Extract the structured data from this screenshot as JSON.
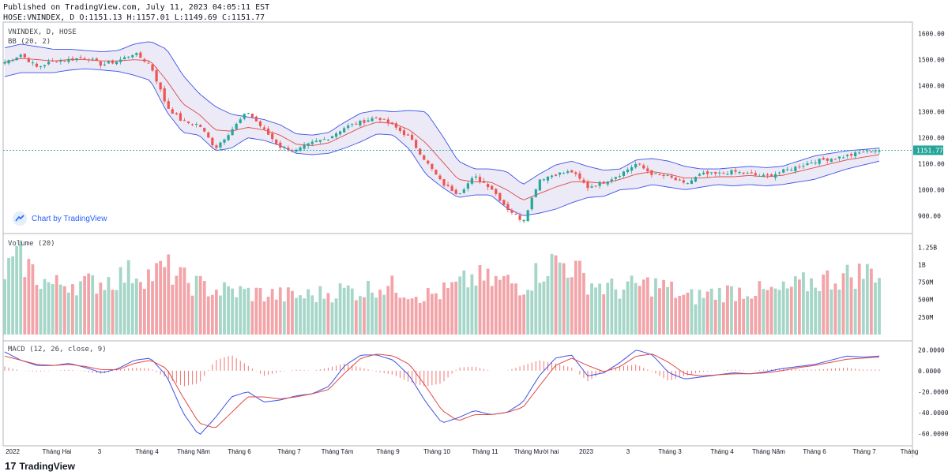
{
  "header": {
    "published_line": "Published on TradingView.com, July 11, 2023 04:05:11 EST",
    "symbol_line": "HOSE:VNINDEX, D O:1151.13 H:1157.01 L:1149.69 C:1151.77"
  },
  "footer": {
    "brand": "TradingView"
  },
  "badge": {
    "label": "Chart by TradingView"
  },
  "colors": {
    "up": "#26a69a",
    "down": "#ef5350",
    "up_vol": "#a5d6c8",
    "down_vol": "#f2a4a8",
    "bb_band": "#3f51e8",
    "bb_basis": "#e04848",
    "bb_fill": "#e8e6f5",
    "macd": "#3f51e8",
    "signal": "#e04848",
    "last_price": "#26a69a"
  },
  "chart_data": [
    {
      "type": "candlestick",
      "title": "VNINDEX, D, HOSE",
      "indicator": "BB (20, 2)",
      "ylim": [
        850,
        1620
      ],
      "y_ticks": [
        "1600.00",
        "1500.00",
        "1400.00",
        "1300.00",
        "1200.00",
        "1100.00",
        "1000.00",
        "900.00"
      ],
      "last_price": "1151.77",
      "close_path": [
        1490,
        1520,
        1470,
        1495,
        1500,
        1510,
        1480,
        1495,
        1525,
        1480,
        1320,
        1260,
        1250,
        1160,
        1230,
        1300,
        1230,
        1165,
        1150,
        1180,
        1200,
        1240,
        1260,
        1280,
        1245,
        1200,
        1110,
        1025,
        985,
        1050,
        1010,
        930,
        880,
        1040,
        1060,
        1070,
        1010,
        1030,
        1060,
        1100,
        1060,
        1050,
        1020,
        1060,
        1060,
        1070,
        1060,
        1050,
        1070,
        1090,
        1110,
        1120,
        1130,
        1145,
        1152
      ],
      "basis_path": [
        1490,
        1505,
        1500,
        1495,
        1500,
        1500,
        1495,
        1495,
        1500,
        1495,
        1420,
        1330,
        1290,
        1230,
        1225,
        1240,
        1230,
        1210,
        1175,
        1170,
        1180,
        1210,
        1240,
        1260,
        1255,
        1230,
        1180,
        1110,
        1040,
        1030,
        1030,
        1000,
        960,
        985,
        1010,
        1030,
        1030,
        1025,
        1040,
        1060,
        1070,
        1060,
        1045,
        1045,
        1050,
        1050,
        1055,
        1050,
        1055,
        1070,
        1085,
        1100,
        1115,
        1125,
        1135
      ],
      "upper_path": [
        1545,
        1560,
        1550,
        1540,
        1540,
        1535,
        1530,
        1535,
        1560,
        1570,
        1540,
        1440,
        1370,
        1320,
        1290,
        1280,
        1270,
        1250,
        1215,
        1210,
        1220,
        1260,
        1295,
        1305,
        1300,
        1305,
        1300,
        1210,
        1110,
        1080,
        1080,
        1070,
        1020,
        1060,
        1095,
        1110,
        1090,
        1075,
        1080,
        1115,
        1120,
        1110,
        1090,
        1080,
        1080,
        1085,
        1090,
        1085,
        1090,
        1110,
        1130,
        1140,
        1150,
        1155,
        1160
      ],
      "lower_path": [
        1435,
        1450,
        1450,
        1450,
        1460,
        1465,
        1460,
        1455,
        1440,
        1420,
        1300,
        1220,
        1210,
        1150,
        1160,
        1200,
        1190,
        1170,
        1140,
        1135,
        1140,
        1160,
        1185,
        1215,
        1210,
        1155,
        1060,
        1010,
        970,
        980,
        980,
        930,
        900,
        910,
        925,
        950,
        970,
        975,
        1000,
        1005,
        1020,
        1010,
        1000,
        1010,
        1020,
        1015,
        1020,
        1015,
        1020,
        1030,
        1040,
        1060,
        1080,
        1095,
        1110
      ]
    },
    {
      "type": "bar",
      "title": "Volume (20)",
      "ylim": [
        0,
        1400000000
      ],
      "y_ticks": [
        "1.25B",
        "1B",
        "750M",
        "500M",
        "250M"
      ],
      "volume_path_M": [
        900,
        1100,
        820,
        700,
        760,
        720,
        760,
        820,
        900,
        850,
        950,
        780,
        700,
        640,
        620,
        600,
        580,
        560,
        550,
        560,
        600,
        640,
        620,
        700,
        680,
        620,
        560,
        600,
        700,
        820,
        760,
        760,
        700,
        900,
        1050,
        980,
        760,
        680,
        640,
        700,
        720,
        660,
        520,
        560,
        600,
        620,
        640,
        600,
        620,
        700,
        760,
        800,
        840,
        880,
        920
      ]
    },
    {
      "type": "line",
      "title": "MACD (12, 26, close, 9)",
      "ylim": [
        -68,
        24
      ],
      "y_ticks": [
        "20.0000",
        "0.0000",
        "-20.0000",
        "-40.0000",
        "-60.0000"
      ],
      "macd_path": [
        18,
        10,
        5,
        5,
        7,
        3,
        -2,
        2,
        10,
        12,
        -5,
        -40,
        -62,
        -45,
        -25,
        -20,
        -30,
        -28,
        -24,
        -22,
        -15,
        5,
        15,
        15,
        10,
        -5,
        -30,
        -50,
        -45,
        -38,
        -42,
        -40,
        -30,
        -5,
        12,
        15,
        -5,
        -2,
        8,
        20,
        15,
        -2,
        -8,
        -6,
        -4,
        -2,
        -3,
        -1,
        2,
        4,
        6,
        10,
        14,
        13,
        14
      ],
      "signal_path": [
        14,
        10,
        6,
        5,
        6,
        4,
        1,
        1,
        7,
        10,
        2,
        -25,
        -50,
        -55,
        -40,
        -25,
        -25,
        -27,
        -25,
        -22,
        -18,
        -2,
        12,
        16,
        14,
        6,
        -15,
        -38,
        -48,
        -42,
        -42,
        -40,
        -35,
        -15,
        5,
        12,
        5,
        -1,
        4,
        14,
        16,
        8,
        -3,
        -5,
        -4,
        -3,
        -3,
        -2,
        0,
        3,
        5,
        8,
        11,
        12,
        13
      ]
    }
  ],
  "x_ticks": [
    "2022",
    "Tháng Hai",
    "3",
    "Tháng 4",
    "Tháng Năm",
    "Tháng 6",
    "Tháng 7",
    "Tháng Tám",
    "Tháng 9",
    "Tháng 10",
    "Tháng 11",
    "Tháng Mười hai",
    "2023",
    "3",
    "Tháng 3",
    "Tháng 4",
    "Tháng Năm",
    "Tháng 6",
    "Tháng 7",
    "Tháng"
  ]
}
